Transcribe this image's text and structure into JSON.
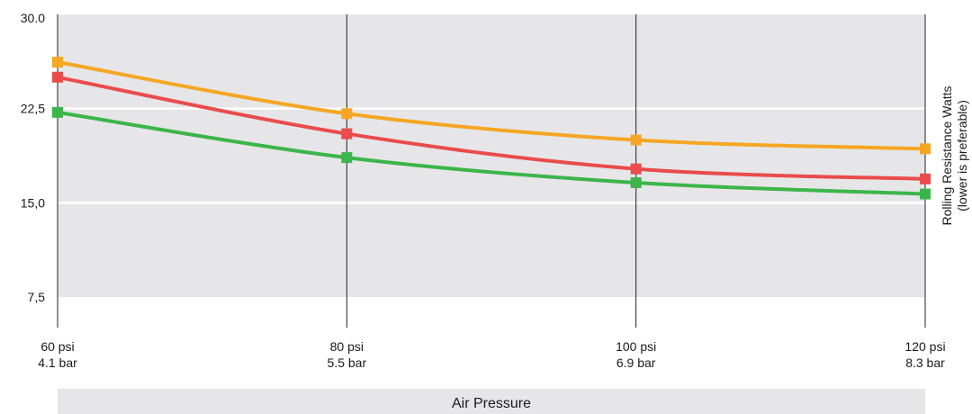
{
  "chart_data": {
    "type": "line",
    "x": [
      "60 psi",
      "80 psi",
      "100 psi",
      "120 psi"
    ],
    "x_secondary_labels": [
      "4.1 bar",
      "5.5 bar",
      "6.9 bar",
      "8.3 bar"
    ],
    "xlabel": "Air Pressure",
    "ylabel": [
      "Rolling Resistance Watts",
      "(lower is preferable)"
    ],
    "ylim": [
      7.5,
      30.0
    ],
    "y_ticks": [
      "30.0",
      "22,5",
      "15,0",
      "7,5"
    ],
    "y_tick_values": [
      30.0,
      22.5,
      15.0,
      7.5
    ],
    "grid": true,
    "series": [
      {
        "color": "#f5a623",
        "values": [
          26.2,
          22.1,
          20.0,
          19.3
        ]
      },
      {
        "color": "#ea4b4b",
        "values": [
          25.0,
          20.5,
          17.7,
          16.9
        ]
      },
      {
        "color": "#3cb54a",
        "values": [
          22.2,
          18.6,
          16.6,
          15.7
        ]
      }
    ],
    "colors": {
      "plot_background": "#e6e6e8",
      "gridline": "#ffffff",
      "vertical_line": "#222222"
    }
  }
}
